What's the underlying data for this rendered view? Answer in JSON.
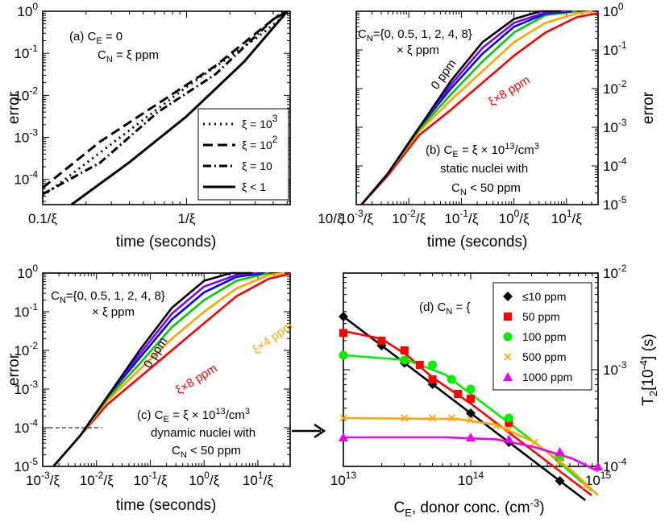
{
  "chart_data": [
    {
      "type": "line",
      "panel": "a",
      "ylabel": "error",
      "xlabel": "time (seconds)",
      "x_ticks": [
        "0.1/ξ",
        "1/ξ",
        "10/ξ"
      ],
      "y_ticks": [
        "10^-4",
        "10^-3",
        "10^-2",
        "10^-1",
        "10^0"
      ],
      "annotation": [
        "(a) C_E = 0",
        "C_N = ξ ppm"
      ],
      "xlim_log10": [
        -1,
        0.72
      ],
      "ylim_log10": [
        -4.6,
        0
      ],
      "series": [
        {
          "name": "ξ = 10^3",
          "style": "dotted",
          "x": [
            -1.0,
            -0.5,
            0.0,
            0.5,
            0.72
          ],
          "y": [
            -4.4,
            -3.1,
            -1.8,
            -0.6,
            0.0
          ]
        },
        {
          "name": "ξ = 10^2",
          "style": "dashed",
          "x": [
            -1.0,
            -0.6,
            -0.2,
            0.2,
            0.6,
            0.7
          ],
          "y": [
            -4.2,
            -3.1,
            -2.2,
            -1.3,
            -0.2,
            0.0
          ]
        },
        {
          "name": "ξ = 10",
          "style": "dashdot",
          "x": [
            -1.0,
            -0.6,
            -0.2,
            0.2,
            0.6,
            0.68
          ],
          "y": [
            -4.35,
            -3.6,
            -2.4,
            -1.5,
            -0.2,
            0.0
          ]
        },
        {
          "name": "ξ < 1",
          "style": "solid",
          "x": [
            -0.8,
            -0.4,
            0.0,
            0.4,
            0.7
          ],
          "y": [
            -4.6,
            -3.6,
            -2.5,
            -1.2,
            0.0
          ]
        }
      ],
      "legend": [
        "ξ = 10^3",
        "ξ = 10^2",
        "ξ = 10",
        "ξ < 1"
      ]
    },
    {
      "type": "line",
      "panel": "b",
      "ylabel": "error",
      "xlabel": "time (seconds)",
      "x_ticks": [
        "10^-3/ξ",
        "10^-2/ξ",
        "10^-1/ξ",
        "10^0/ξ",
        "10^1/ξ"
      ],
      "y_ticks": [
        "10^-5",
        "10^-4",
        "10^-3",
        "10^-2",
        "10^-1",
        "10^0"
      ],
      "annotation": [
        "C_N={0, 0.5, 1, 2, 4, 8}",
        "× ξ ppm",
        "(b) C_E = ξ × 10^13/cm^3",
        "static nuclei with",
        "C_N < 50 ppm"
      ],
      "labels": [
        "0 ppm",
        "ξ×8 ppm"
      ],
      "xlim_log10": [
        -3,
        1.6
      ],
      "ylim_log10": [
        -5,
        0
      ],
      "series": [
        {
          "name": "0 ppm",
          "color": "#000000",
          "x": [
            -2.9,
            -2.4,
            -1.8,
            -1.2,
            -0.6,
            0.0,
            0.5,
            0.9
          ],
          "y": [
            -5.0,
            -4.2,
            -3.0,
            -1.8,
            -0.8,
            -0.2,
            0.0,
            0.0
          ]
        },
        {
          "name": "0.5 ppm",
          "color": "#7f00ff",
          "x": [
            -2.9,
            -2.4,
            -1.8,
            -1.2,
            -0.6,
            0.0,
            0.6,
            1.0
          ],
          "y": [
            -5.0,
            -4.2,
            -3.0,
            -1.9,
            -0.95,
            -0.3,
            -0.03,
            0.0
          ]
        },
        {
          "name": "1 ppm",
          "color": "#0000ff",
          "x": [
            -2.9,
            -2.4,
            -1.8,
            -1.2,
            -0.6,
            0.0,
            0.6,
            1.1
          ],
          "y": [
            -5.0,
            -4.2,
            -3.0,
            -2.0,
            -1.1,
            -0.4,
            -0.06,
            0.0
          ]
        },
        {
          "name": "2 ppm",
          "color": "#00cc00",
          "x": [
            -2.9,
            -2.4,
            -1.8,
            -1.2,
            -0.6,
            0.0,
            0.6,
            1.2
          ],
          "y": [
            -5.0,
            -4.2,
            -3.05,
            -2.15,
            -1.3,
            -0.55,
            -0.1,
            0.0
          ]
        },
        {
          "name": "4 ppm",
          "color": "#ffa500",
          "x": [
            -2.9,
            -2.4,
            -1.8,
            -1.2,
            -0.6,
            0.0,
            0.6,
            1.2,
            1.5
          ],
          "y": [
            -5.0,
            -4.2,
            -3.1,
            -2.3,
            -1.55,
            -0.8,
            -0.3,
            -0.05,
            0.0
          ]
        },
        {
          "name": "8 ppm",
          "color": "#ff0000",
          "x": [
            -2.9,
            -2.4,
            -1.8,
            -1.2,
            -0.6,
            0.0,
            0.6,
            1.2,
            1.6
          ],
          "y": [
            -5.0,
            -4.25,
            -3.2,
            -2.55,
            -1.85,
            -1.15,
            -0.55,
            -0.15,
            -0.05
          ]
        }
      ]
    },
    {
      "type": "line",
      "panel": "c",
      "ylabel": "error",
      "xlabel": "time (seconds)",
      "x_ticks": [
        "10^-3/ξ",
        "10^-2/ξ",
        "10^-1/ξ",
        "10^0/ξ",
        "10^1/ξ"
      ],
      "y_ticks": [
        "10^-5",
        "10^-4",
        "10^-3",
        "10^-2",
        "10^-1",
        "10^0"
      ],
      "annotation": [
        "C_N={0, 0.5, 1, 2, 4, 8}",
        "× ξ ppm",
        "(c) C_E = ξ × 10^13/cm^3",
        "dynamic nuclei with",
        "C_N < 50 ppm"
      ],
      "labels": [
        "0 ppm",
        "ξ×8 ppm",
        "ξ×4 ppm"
      ],
      "xlim_log10": [
        -3,
        1.6
      ],
      "ylim_log10": [
        -5,
        0
      ],
      "series": [
        {
          "name": "0 ppm",
          "color": "#000000",
          "x": [
            -2.8,
            -2.3,
            -1.8,
            -1.2,
            -0.6,
            0.0,
            0.5,
            0.9
          ],
          "y": [
            -5.0,
            -4.2,
            -3.2,
            -2.0,
            -0.9,
            -0.2,
            0.0,
            0.0
          ]
        },
        {
          "name": "0.5 ppm",
          "color": "#7f00ff",
          "x": [
            -2.8,
            -2.3,
            -1.8,
            -1.2,
            -0.6,
            0.0,
            0.6,
            1.0
          ],
          "y": [
            -5.0,
            -4.2,
            -3.2,
            -2.1,
            -1.05,
            -0.35,
            -0.05,
            0.0
          ]
        },
        {
          "name": "1 ppm",
          "color": "#0000ff",
          "x": [
            -2.8,
            -2.3,
            -1.8,
            -1.2,
            -0.6,
            0.0,
            0.6,
            1.1
          ],
          "y": [
            -5.0,
            -4.2,
            -3.2,
            -2.2,
            -1.2,
            -0.5,
            -0.1,
            0.0
          ]
        },
        {
          "name": "2 ppm",
          "color": "#00cc00",
          "x": [
            -2.8,
            -2.3,
            -1.8,
            -1.2,
            -0.6,
            0.0,
            0.6,
            1.2
          ],
          "y": [
            -5.0,
            -4.2,
            -3.25,
            -2.35,
            -1.4,
            -0.7,
            -0.2,
            0.0
          ]
        },
        {
          "name": "4 ppm",
          "color": "#ffa500",
          "x": [
            -2.8,
            -2.3,
            -1.8,
            -1.2,
            -0.6,
            0.0,
            0.6,
            1.2,
            1.5
          ],
          "y": [
            -5.0,
            -4.2,
            -3.3,
            -2.5,
            -1.7,
            -1.0,
            -0.4,
            -0.05,
            0.0
          ]
        },
        {
          "name": "8 ppm",
          "color": "#ff0000",
          "x": [
            -2.8,
            -2.3,
            -1.8,
            -1.2,
            -0.6,
            0.0,
            0.6,
            1.2,
            1.6
          ],
          "y": [
            -5.0,
            -4.2,
            -3.4,
            -2.7,
            -2.0,
            -1.3,
            -0.6,
            -0.15,
            -0.02
          ]
        }
      ],
      "reference_line": {
        "y_log10": -4,
        "x_from_log10": -3,
        "x_to_log10": -1.9
      }
    },
    {
      "type": "line",
      "panel": "d",
      "ylabel": "T_2[10^-4] (s)",
      "xlabel": "C_E, donor conc. (cm^-3)",
      "x_ticks": [
        "10^13",
        "10^14",
        "10^15"
      ],
      "y_ticks": [
        "10^-4",
        "10^-3",
        "10^-2"
      ],
      "annotation": [
        "(d) C_N = {"
      ],
      "xlim_log10": [
        13,
        15
      ],
      "ylim_log10": [
        -4,
        -2
      ],
      "series": [
        {
          "name": "≤10 ppm",
          "color": "#000000",
          "marker": "diamond",
          "x": [
            13.0,
            13.3,
            13.48,
            13.7,
            14.0,
            14.3,
            14.7
          ],
          "y": [
            -2.45,
            -2.75,
            -2.93,
            -3.15,
            -3.45,
            -3.75,
            -4.15
          ],
          "curve_x": [
            13.0,
            14.9
          ],
          "curve_y": [
            -2.45,
            -4.35
          ]
        },
        {
          "name": "50 ppm",
          "color": "#ff0000",
          "marker": "square",
          "x": [
            13.0,
            13.3,
            13.48,
            13.6,
            13.7,
            13.9,
            14.0,
            14.3,
            14.7
          ],
          "y": [
            -2.62,
            -2.7,
            -2.8,
            -2.95,
            -3.1,
            -3.25,
            -3.3,
            -3.55,
            -3.9
          ],
          "curve_x": [
            13.0,
            13.3,
            13.5,
            13.7,
            14.0,
            14.5,
            14.95
          ],
          "curve_y": [
            -2.6,
            -2.68,
            -2.85,
            -3.08,
            -3.35,
            -3.85,
            -4.3
          ]
        },
        {
          "name": "100 ppm",
          "color": "#00ee00",
          "marker": "circle",
          "x": [
            13.0,
            13.48,
            13.7,
            13.85,
            14.0,
            14.3,
            14.7
          ],
          "y": [
            -2.85,
            -2.9,
            -2.95,
            -3.1,
            -3.2,
            -3.5,
            -3.9
          ],
          "curve_x": [
            13.0,
            13.5,
            13.8,
            14.0,
            14.3,
            14.6,
            14.95
          ],
          "curve_y": [
            -2.85,
            -2.9,
            -3.05,
            -3.25,
            -3.55,
            -3.85,
            -4.25
          ]
        },
        {
          "name": "500 ppm",
          "color": "#ffa500",
          "marker": "x",
          "x": [
            13.0,
            13.48,
            13.7,
            13.85,
            14.0,
            14.2,
            14.3,
            14.5,
            14.7,
            14.9
          ],
          "y": [
            -3.5,
            -3.5,
            -3.5,
            -3.5,
            -3.52,
            -3.58,
            -3.62,
            -3.75,
            -3.95,
            -4.2
          ],
          "curve_x": [
            13.0,
            13.9,
            14.2,
            14.5,
            14.8,
            15.0
          ],
          "curve_y": [
            -3.5,
            -3.51,
            -3.57,
            -3.75,
            -4.05,
            -4.3
          ]
        },
        {
          "name": "1000 ppm",
          "color": "#ee00ee",
          "marker": "triangle",
          "x": [
            13.0,
            14.0,
            14.3,
            14.7,
            15.0
          ],
          "y": [
            -3.7,
            -3.7,
            -3.72,
            -3.85,
            -4.0
          ],
          "curve_x": [
            13.0,
            13.8,
            14.2,
            14.5,
            14.8,
            15.0
          ],
          "curve_y": [
            -3.7,
            -3.7,
            -3.72,
            -3.8,
            -3.92,
            -4.05
          ]
        }
      ],
      "legend": [
        "≤10 ppm",
        "50 ppm",
        "100 ppm",
        "500 ppm",
        "1000 ppm"
      ]
    }
  ]
}
